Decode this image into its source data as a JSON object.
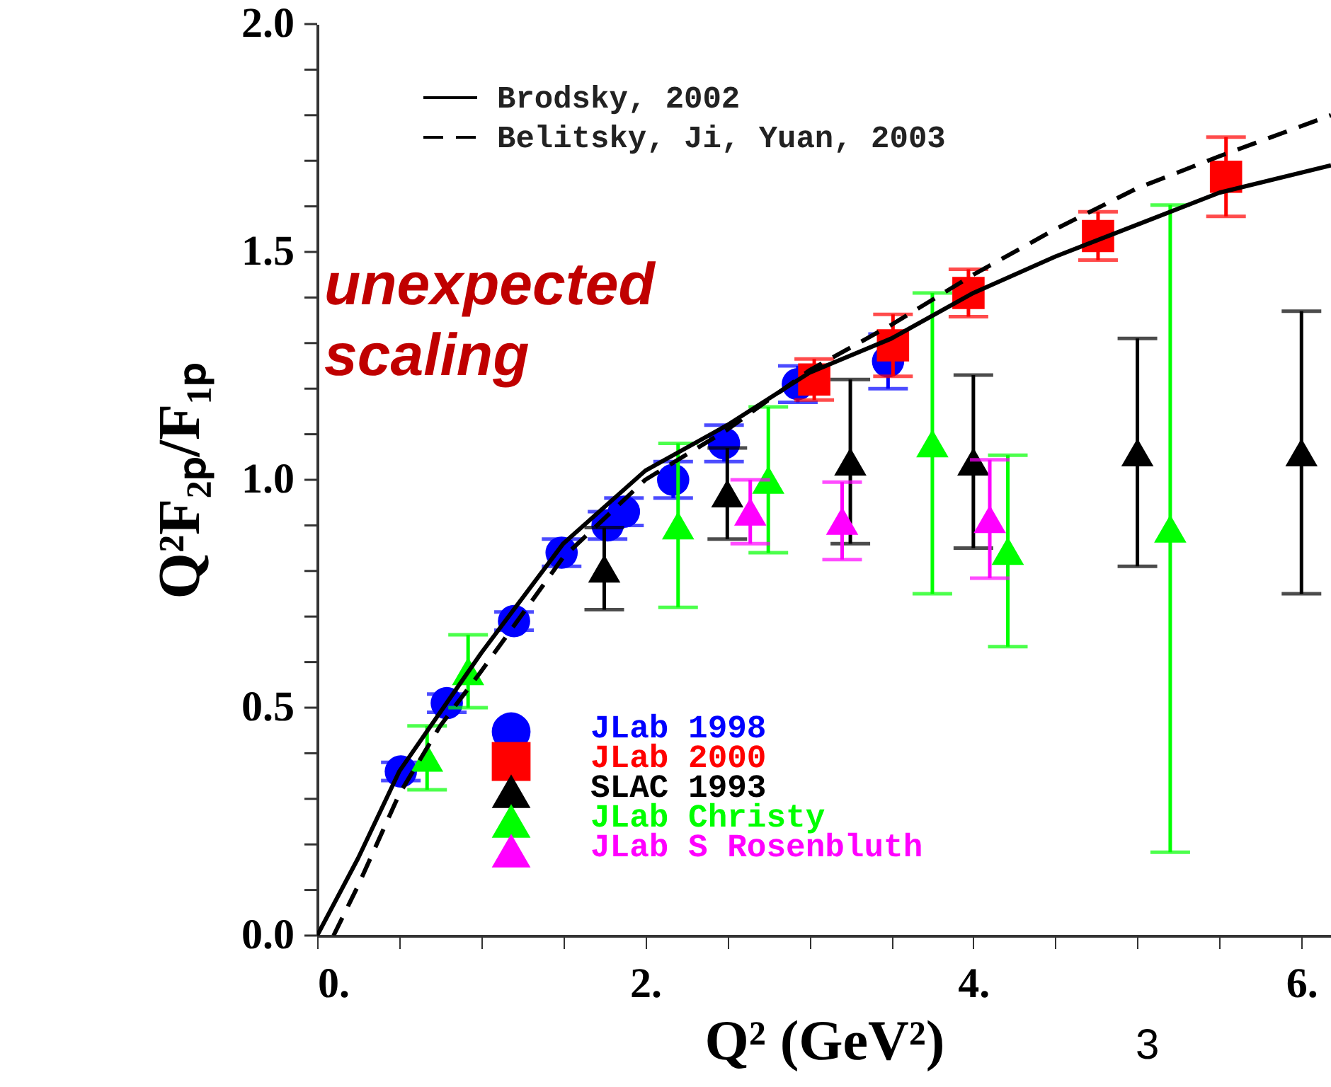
{
  "chart_data": {
    "type": "scatter",
    "xlabel": "Q² (GeV²)",
    "ylabel": "Q²F₂ₚ/F₁ₚ",
    "xlim": [
      0,
      6.18
    ],
    "ylim": [
      0,
      2.0
    ],
    "xticks": [
      {
        "value": 0,
        "label": "0."
      },
      {
        "value": 0.5,
        "label": null
      },
      {
        "value": 1,
        "label": null
      },
      {
        "value": 1.5,
        "label": null
      },
      {
        "value": 2,
        "label": "2."
      },
      {
        "value": 2.5,
        "label": null
      },
      {
        "value": 3,
        "label": null
      },
      {
        "value": 3.5,
        "label": null
      },
      {
        "value": 4,
        "label": "4."
      },
      {
        "value": 4.5,
        "label": null
      },
      {
        "value": 5,
        "label": null
      },
      {
        "value": 5.5,
        "label": null
      },
      {
        "value": 6,
        "label": "6."
      }
    ],
    "yticks": [
      {
        "value": 0,
        "label": "0.0"
      },
      {
        "value": 0.1,
        "label": null
      },
      {
        "value": 0.2,
        "label": null
      },
      {
        "value": 0.3,
        "label": null
      },
      {
        "value": 0.4,
        "label": null
      },
      {
        "value": 0.5,
        "label": "0.5"
      },
      {
        "value": 0.6,
        "label": null
      },
      {
        "value": 0.7,
        "label": null
      },
      {
        "value": 0.8,
        "label": null
      },
      {
        "value": 0.9,
        "label": null
      },
      {
        "value": 1.0,
        "label": "1.0"
      },
      {
        "value": 1.1,
        "label": null
      },
      {
        "value": 1.2,
        "label": null
      },
      {
        "value": 1.3,
        "label": null
      },
      {
        "value": 1.4,
        "label": null
      },
      {
        "value": 1.5,
        "label": "1.5"
      },
      {
        "value": 1.6,
        "label": null
      },
      {
        "value": 1.7,
        "label": null
      },
      {
        "value": 1.8,
        "label": null
      },
      {
        "value": 1.9,
        "label": null
      },
      {
        "value": 2.0,
        "label": "2.0"
      }
    ],
    "grid": false,
    "legend": "left",
    "annotations": [
      "unexpected scaling",
      "3"
    ],
    "series": [
      {
        "name": "Brodsky, 2002",
        "type": "line",
        "color": "#000000",
        "line_style": "solid",
        "marker": "none",
        "x": [
          0,
          0.25,
          0.5,
          0.75,
          1,
          1.5,
          2,
          2.5,
          3,
          3.5,
          4,
          4.5,
          5,
          5.5,
          6.18
        ],
        "values": [
          0,
          0.17,
          0.36,
          0.49,
          0.62,
          0.86,
          1.02,
          1.12,
          1.235,
          1.31,
          1.41,
          1.49,
          1.56,
          1.63,
          1.69
        ]
      },
      {
        "name": "Belitsky, Ji, Yuan, 2003",
        "type": "line",
        "color": "#000000",
        "line_style": "dashed",
        "marker": "none",
        "x": [
          0.1,
          0.25,
          0.5,
          0.75,
          1,
          1.5,
          2,
          2.5,
          3,
          3.5,
          4,
          4.5,
          5,
          5.5,
          6.18
        ],
        "values": [
          0,
          0.11,
          0.31,
          0.46,
          0.58,
          0.83,
          1.0,
          1.11,
          1.24,
          1.34,
          1.45,
          1.55,
          1.64,
          1.71,
          1.8
        ]
      },
      {
        "name": "JLab 1998",
        "color": "#0000ff",
        "marker": "circle",
        "x": [
          0.51,
          0.79,
          1.2,
          1.49,
          1.77,
          1.87,
          2.17,
          2.48,
          2.93,
          3.48
        ],
        "values": [
          0.36,
          0.51,
          0.69,
          0.84,
          0.9,
          0.93,
          1.0,
          1.08,
          1.21,
          1.26
        ],
        "errors": [
          0.02,
          0.02,
          0.02,
          0.03,
          0.03,
          0.03,
          0.04,
          0.04,
          0.04,
          0.06
        ]
      },
      {
        "name": "JLab 2000",
        "color": "#ff0000",
        "marker": "square",
        "x": [
          3.03,
          3.51,
          3.97,
          4.76,
          5.54
        ],
        "values": [
          1.22,
          1.295,
          1.41,
          1.535,
          1.665
        ],
        "errors": [
          0.045,
          0.068,
          0.052,
          0.053,
          0.087
        ]
      },
      {
        "name": "SLAC 1993",
        "color": "#000000",
        "marker": "triangle",
        "x": [
          1.75,
          2.5,
          3.25,
          4.0,
          5.0,
          6.0
        ],
        "values": [
          0.805,
          0.97,
          1.04,
          1.04,
          1.06,
          1.06
        ],
        "errors": [
          0.09,
          0.1,
          0.18,
          0.19,
          0.25,
          0.31
        ]
      },
      {
        "name": "JLab Christy",
        "color": "#00ff00",
        "marker": "triangle",
        "x": [
          0.67,
          0.92,
          2.2,
          2.75,
          3.75,
          4.21,
          5.2
        ],
        "values": [
          0.39,
          0.58,
          0.9,
          1.0,
          1.08,
          0.844,
          0.893
        ],
        "errors": [
          0.07,
          0.08,
          0.18,
          0.16,
          0.33,
          0.21,
          0.71
        ]
      },
      {
        "name": "JLab S Rosenbluth",
        "color": "#ff00ff",
        "marker": "triangle",
        "x": [
          2.64,
          3.2,
          4.1
        ],
        "values": [
          0.93,
          0.91,
          0.914
        ],
        "errors": [
          0.07,
          0.085,
          0.13
        ]
      }
    ]
  }
}
